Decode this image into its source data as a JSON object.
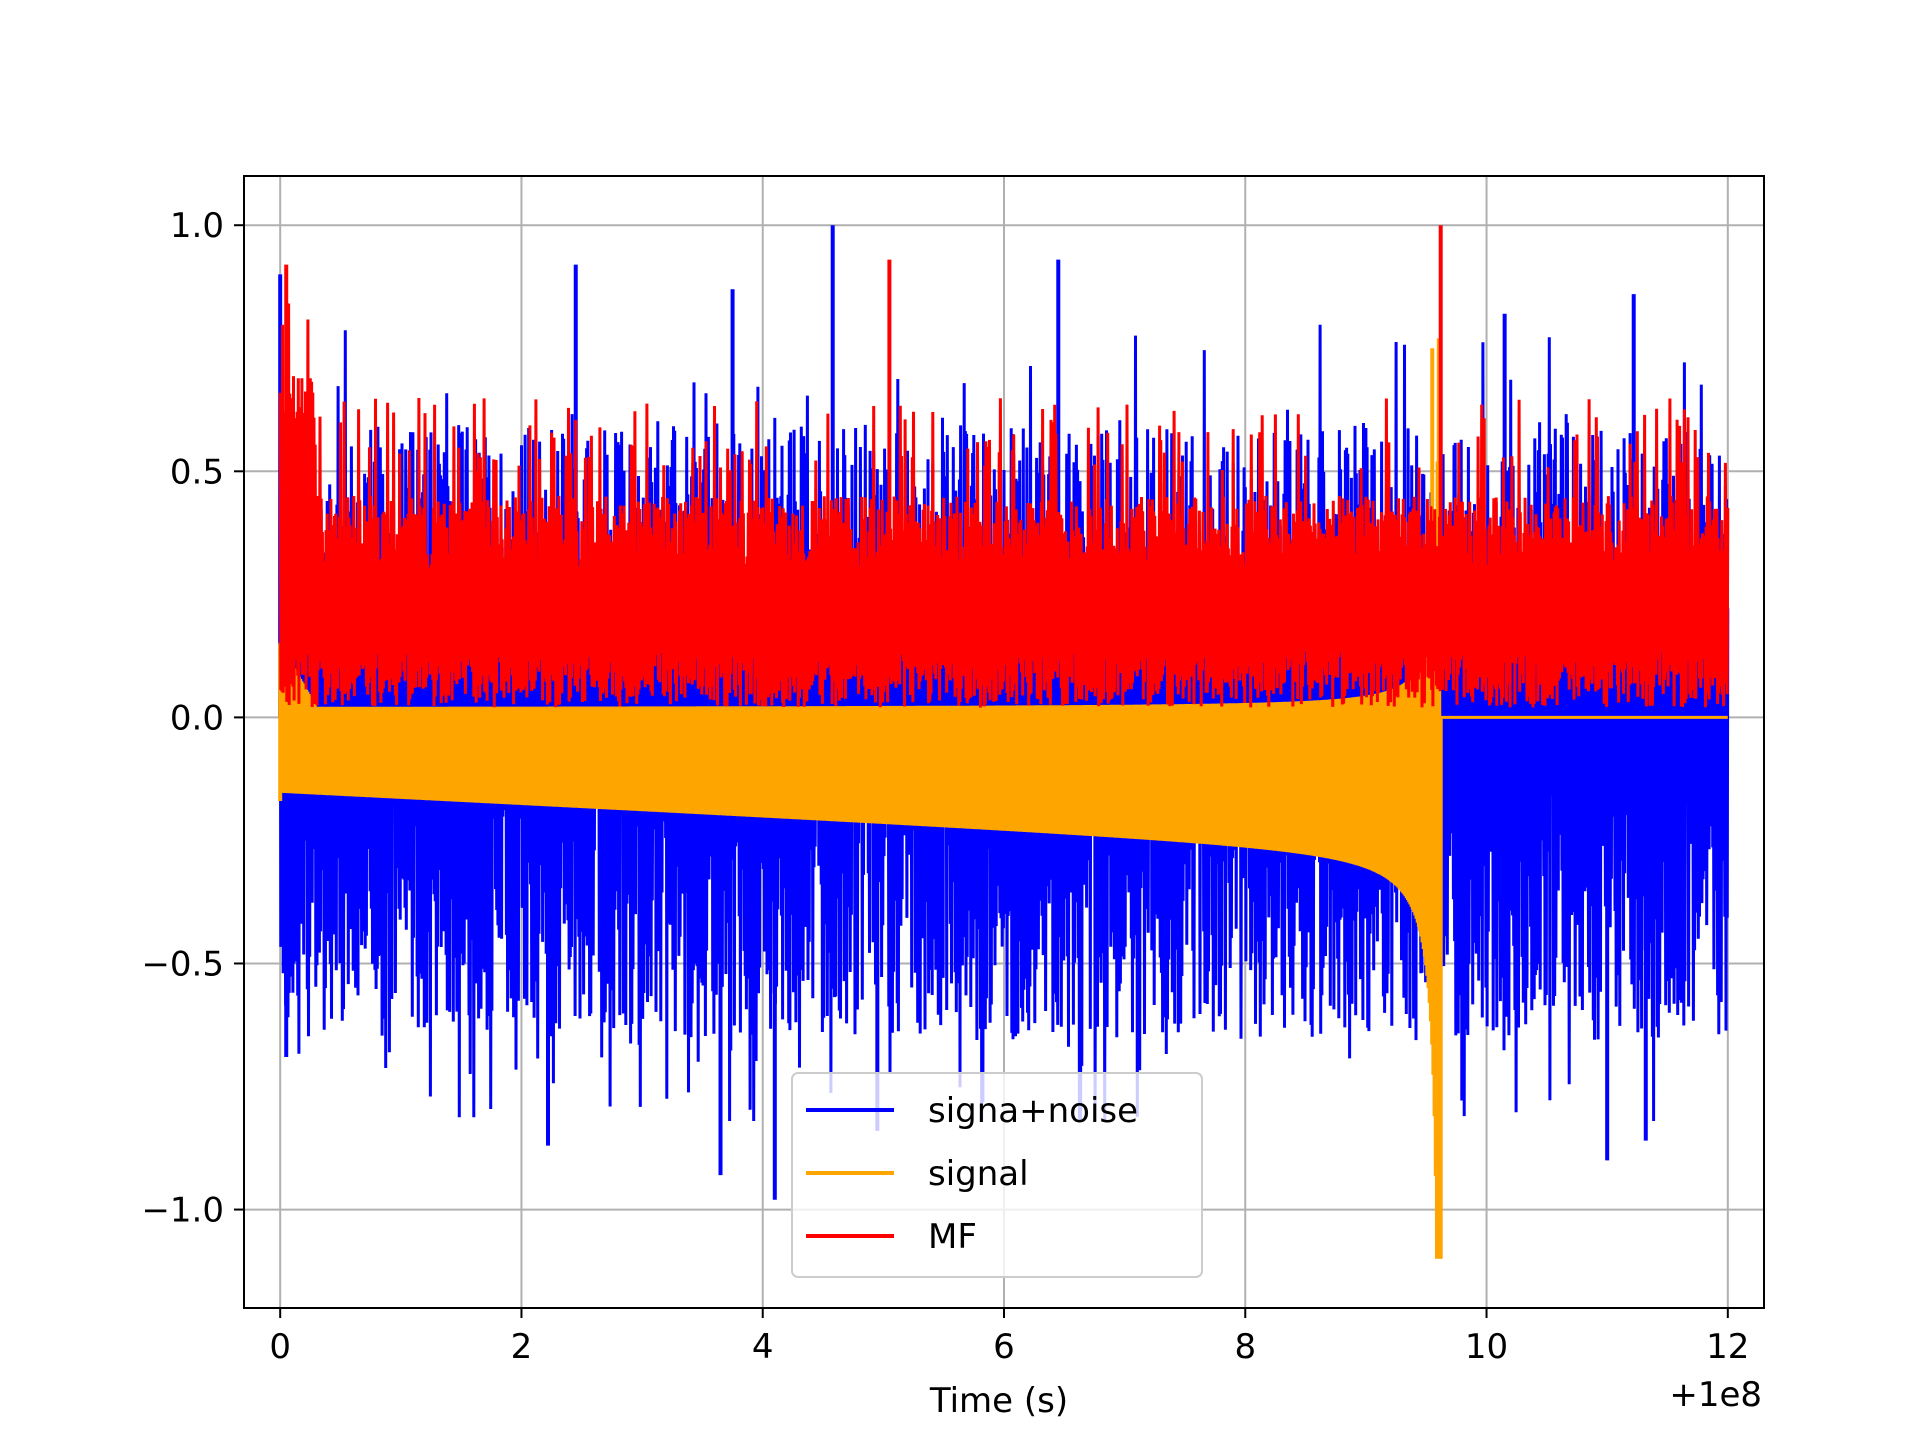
{
  "chart_data": {
    "type": "line",
    "title": "",
    "xlabel": "Time (s)",
    "ylabel": "",
    "x_offset_label": "+1e8",
    "xlim": [
      -0.3,
      12.3
    ],
    "ylim": [
      -1.2,
      1.1
    ],
    "x_ticks": [
      0,
      2,
      4,
      6,
      8,
      10,
      12
    ],
    "x_tick_labels": [
      "0",
      "2",
      "4",
      "6",
      "8",
      "10",
      "12"
    ],
    "y_ticks": [
      -1.0,
      -0.5,
      0.0,
      0.5,
      1.0
    ],
    "y_tick_labels": [
      "−1.0",
      "−0.5",
      "0.0",
      "0.5",
      "1.0"
    ],
    "grid": true,
    "legend_position": "lower-center",
    "x_range": [
      0,
      12
    ],
    "signal_end_x": 9.62,
    "series": [
      {
        "name": "signa+noise",
        "color": "#0000ff",
        "envelope_max": 1.0,
        "envelope_min": -0.98,
        "peaks": [
          [
            0.0,
            0.9
          ],
          [
            2.45,
            0.92
          ],
          [
            3.75,
            0.87
          ],
          [
            4.58,
            1.0
          ],
          [
            6.45,
            0.93
          ],
          [
            10.15,
            0.82
          ],
          [
            11.22,
            0.86
          ]
        ],
        "troughs": [
          [
            0.05,
            -0.69
          ],
          [
            2.22,
            -0.87
          ],
          [
            3.65,
            -0.93
          ],
          [
            4.1,
            -0.98
          ],
          [
            4.95,
            -0.84
          ],
          [
            11.0,
            -0.9
          ],
          [
            11.32,
            -0.86
          ]
        ]
      },
      {
        "name": "signal",
        "color": "#ffa500",
        "envelope_max": 0.75,
        "envelope_min": -1.1,
        "peaks": [
          [
            0.0,
            0.15
          ],
          [
            9.55,
            0.75
          ]
        ],
        "troughs": [
          [
            0.0,
            -0.17
          ],
          [
            6.0,
            -0.22
          ],
          [
            9.62,
            -1.1
          ]
        ]
      },
      {
        "name": "MF",
        "color": "#ff0000",
        "envelope_max": 1.0,
        "envelope_min": 0.0,
        "peaks": [
          [
            0.05,
            0.92
          ],
          [
            5.05,
            0.93
          ],
          [
            9.62,
            1.0
          ]
        ],
        "troughs": [
          [
            0.0,
            0.0
          ]
        ]
      }
    ]
  }
}
